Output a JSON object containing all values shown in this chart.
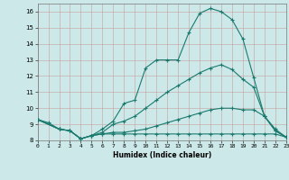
{
  "xlabel": "Humidex (Indice chaleur)",
  "bg_color": "#cce8e8",
  "grid_color": "#b0d0d0",
  "line_color": "#1a7a6e",
  "xlim": [
    0,
    23
  ],
  "ylim": [
    8.0,
    16.5
  ],
  "xtick_labels": [
    "0",
    "1",
    "2",
    "3",
    "4",
    "5",
    "6",
    "7",
    "8",
    "9",
    "10",
    "11",
    "12",
    "13",
    "14",
    "15",
    "16",
    "17",
    "18",
    "19",
    "20",
    "21",
    "22",
    "23"
  ],
  "ytick_labels": [
    "8",
    "9",
    "10",
    "11",
    "12",
    "13",
    "14",
    "15",
    "16"
  ],
  "ytick_vals": [
    8,
    9,
    10,
    11,
    12,
    13,
    14,
    15,
    16
  ],
  "xtick_vals": [
    0,
    1,
    2,
    3,
    4,
    5,
    6,
    7,
    8,
    9,
    10,
    11,
    12,
    13,
    14,
    15,
    16,
    17,
    18,
    19,
    20,
    21,
    22,
    23
  ],
  "lines": [
    {
      "x": [
        0,
        1,
        2,
        3,
        4,
        5,
        6,
        7,
        8,
        9,
        10,
        11,
        12,
        13,
        14,
        15,
        16,
        17,
        18,
        19,
        20,
        21,
        22,
        23
      ],
      "y": [
        9.3,
        9.1,
        8.7,
        8.6,
        8.1,
        8.3,
        8.7,
        9.2,
        10.3,
        10.5,
        12.5,
        13.0,
        13.0,
        13.0,
        14.7,
        15.9,
        16.2,
        16.0,
        15.5,
        14.3,
        11.9,
        9.5,
        8.6,
        8.2
      ]
    },
    {
      "x": [
        0,
        2,
        3,
        4,
        5,
        6,
        7,
        8,
        9,
        10,
        11,
        12,
        13,
        14,
        15,
        16,
        17,
        18,
        19,
        20,
        21,
        22,
        23
      ],
      "y": [
        9.3,
        8.7,
        8.6,
        8.1,
        8.3,
        8.5,
        9.0,
        9.2,
        9.5,
        10.0,
        10.5,
        11.0,
        11.4,
        11.8,
        12.2,
        12.5,
        12.7,
        12.4,
        11.8,
        11.3,
        9.5,
        8.6,
        8.2
      ]
    },
    {
      "x": [
        0,
        2,
        3,
        4,
        5,
        6,
        7,
        8,
        9,
        10,
        11,
        12,
        13,
        14,
        15,
        16,
        17,
        18,
        19,
        20,
        21,
        22,
        23
      ],
      "y": [
        9.3,
        8.7,
        8.6,
        8.1,
        8.3,
        8.4,
        8.5,
        8.5,
        8.6,
        8.7,
        8.9,
        9.1,
        9.3,
        9.5,
        9.7,
        9.9,
        10.0,
        10.0,
        9.9,
        9.9,
        9.5,
        8.7,
        8.2
      ]
    },
    {
      "x": [
        0,
        2,
        3,
        4,
        5,
        6,
        7,
        8,
        9,
        10,
        11,
        12,
        13,
        14,
        15,
        16,
        17,
        18,
        19,
        20,
        21,
        22,
        23
      ],
      "y": [
        9.3,
        8.7,
        8.6,
        8.1,
        8.3,
        8.4,
        8.4,
        8.4,
        8.4,
        8.4,
        8.4,
        8.4,
        8.4,
        8.4,
        8.4,
        8.4,
        8.4,
        8.4,
        8.4,
        8.4,
        8.4,
        8.4,
        8.2
      ]
    }
  ]
}
